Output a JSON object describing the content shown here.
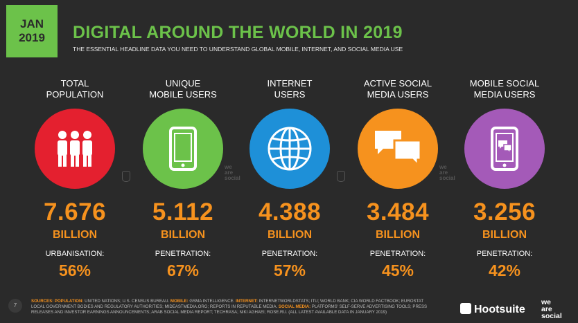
{
  "header": {
    "month": "JAN",
    "year": "2019",
    "title": "DIGITAL AROUND THE WORLD IN 2019",
    "subtitle": "THE ESSENTIAL HEADLINE DATA YOU NEED TO UNDERSTAND GLOBAL MOBILE, INTERNET, AND SOCIAL MEDIA USE"
  },
  "stats": [
    {
      "label_line1": "TOTAL",
      "label_line2": "POPULATION",
      "value": "7.676",
      "unit": "BILLION",
      "sub_label": "URBANISATION:",
      "sub_value": "56%",
      "color": "#e4202f",
      "icon": "people-icon"
    },
    {
      "label_line1": "UNIQUE",
      "label_line2": "MOBILE USERS",
      "value": "5.112",
      "unit": "BILLION",
      "sub_label": "PENETRATION:",
      "sub_value": "67%",
      "color": "#6cc24a",
      "icon": "mobile-phone-icon"
    },
    {
      "label_line1": "INTERNET",
      "label_line2": "USERS",
      "value": "4.388",
      "unit": "BILLION",
      "sub_label": "PENETRATION:",
      "sub_value": "57%",
      "color": "#1e90d8",
      "icon": "globe-icon"
    },
    {
      "label_line1": "ACTIVE SOCIAL",
      "label_line2": "MEDIA USERS",
      "value": "3.484",
      "unit": "BILLION",
      "sub_label": "PENETRATION:",
      "sub_value": "45%",
      "color": "#f6921e",
      "icon": "chat-bubbles-icon"
    },
    {
      "label_line1": "MOBILE SOCIAL",
      "label_line2": "MEDIA USERS",
      "value": "3.256",
      "unit": "BILLION",
      "sub_label": "PENETRATION:",
      "sub_value": "42%",
      "color": "#a45ab8",
      "icon": "mobile-chat-icon"
    }
  ],
  "watermark": {
    "line1": "we",
    "line2": "are",
    "line3": "social"
  },
  "footer": {
    "page_number": "7",
    "sources_prefix": "SOURCES:",
    "population_label": "POPULATION:",
    "population_text": " UNITED NATIONS; U.S. CENSUS BUREAU. ",
    "mobile_label": "MOBILE:",
    "mobile_text": " GSMA INTELLIGENCE. ",
    "internet_label": "INTERNET:",
    "internet_text": " INTERNETWORLDSTATS; ITU; WORLD BANK; CIA WORLD FACTBOOK; EUROSTAT LOCAL GOVERNMENT BODIES AND REGULATORY AUTHORITIES; MIDEASTMEDIA.ORG; REPORTS IN REPUTABLE MEDIA. ",
    "social_label": "SOCIAL MEDIA:",
    "social_text": " PLATFORMS' SELF-SERVE ADVERTISING TOOLS; PRESS RELEASES AND INVESTOR EARNINGS ANNOUNCEMENTS; ARAB SOCIAL MEDIA REPORT; TECHRASA; NIKI AGHAEI; ROSE.RU. (ALL LATEST AVAILABLE DATA IN JANUARY 2019)",
    "brand": "Hootsuite",
    "we_are_social": {
      "line1": "we",
      "line2": "are",
      "line3": "social"
    }
  }
}
